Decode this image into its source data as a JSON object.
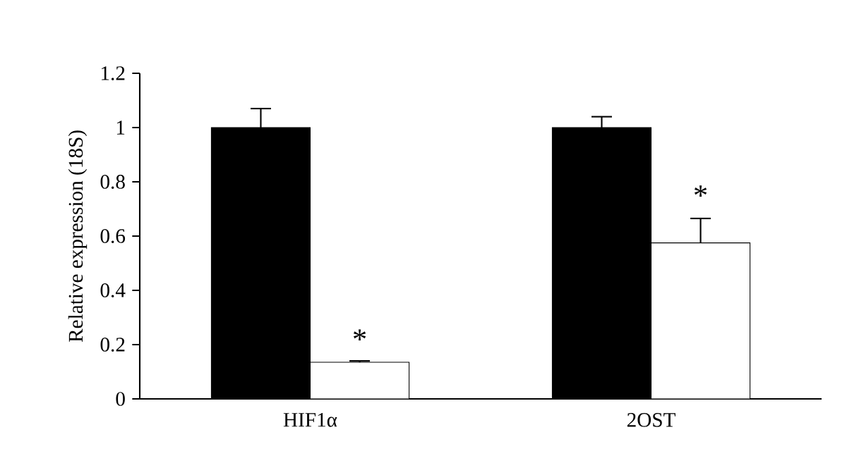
{
  "chart_data": {
    "type": "bar",
    "ylabel": "Relative expression (18S)",
    "categories": [
      "HIF1α",
      "2OST"
    ],
    "series": [
      {
        "color": "#000000",
        "values": [
          1.0,
          1.0
        ],
        "errors": [
          [
            1.0,
            1.07
          ],
          [
            1.0,
            1.04
          ]
        ]
      },
      {
        "color": "#ffffff",
        "values": [
          0.135,
          0.575
        ],
        "errors": [
          [
            0.135,
            0.14
          ],
          [
            0.575,
            0.665
          ]
        ]
      }
    ],
    "ylim": [
      0,
      1.2
    ],
    "yticks": [
      0,
      0.2,
      0.4,
      0.6,
      0.8,
      1,
      1.2
    ],
    "grid": false,
    "annotations": [
      {
        "text": "*",
        "x": "HIF1α",
        "y": 0.22
      },
      {
        "text": "*",
        "x": "2OST",
        "y": 0.75
      }
    ]
  }
}
